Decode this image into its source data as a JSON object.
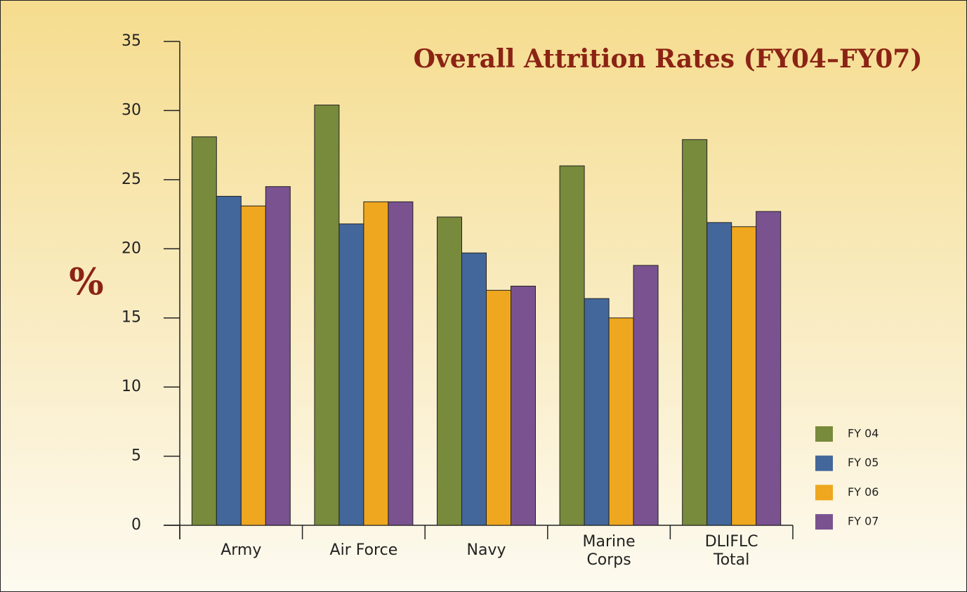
{
  "chart_data": {
    "type": "bar",
    "title": "Overall Attrition Rates (FY04–FY07)",
    "y_label": "%",
    "categories": [
      "Army",
      "Air Force",
      "Navy",
      "Marine\nCorps",
      "DLIFLC\nTotal"
    ],
    "series": [
      {
        "name": "FY 04",
        "color": "#788a3c",
        "values": [
          28.1,
          30.4,
          22.3,
          26.0,
          27.9
        ]
      },
      {
        "name": "FY 05",
        "color": "#43679b",
        "values": [
          23.8,
          21.8,
          19.7,
          16.4,
          21.9
        ]
      },
      {
        "name": "FY 06",
        "color": "#eea71e",
        "values": [
          23.1,
          23.4,
          17.0,
          15.0,
          21.6
        ]
      },
      {
        "name": "FY 07",
        "color": "#7a5290",
        "values": [
          24.5,
          23.4,
          17.3,
          18.8,
          22.7
        ]
      }
    ],
    "ylim": [
      0,
      35
    ],
    "yticks": [
      0,
      5,
      10,
      15,
      20,
      25,
      30,
      35
    ],
    "legend": "lower right"
  }
}
